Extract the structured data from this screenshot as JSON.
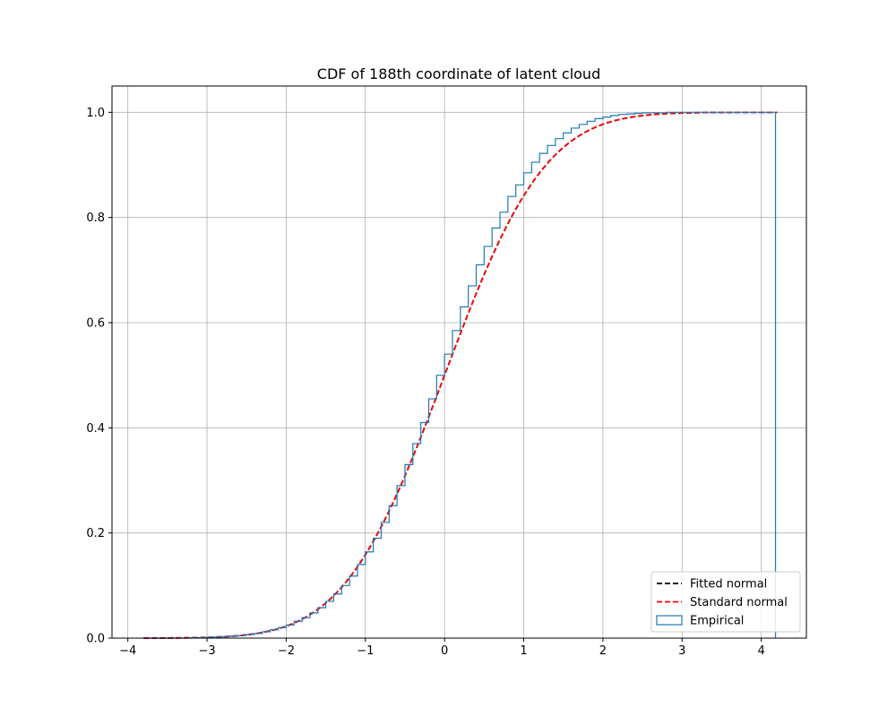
{
  "chart_data": {
    "type": "line",
    "title": "CDF of 188th coordinate of latent cloud",
    "xlabel": "",
    "ylabel": "",
    "xlim": [
      -4.2,
      4.57
    ],
    "ylim": [
      0.0,
      1.05
    ],
    "x_ticks": [
      -4,
      -3,
      -2,
      -1,
      0,
      1,
      2,
      3,
      4
    ],
    "x_tick_labels": [
      "−4",
      "−3",
      "−2",
      "−1",
      "0",
      "1",
      "2",
      "3",
      "4"
    ],
    "y_ticks": [
      0.0,
      0.2,
      0.4,
      0.6,
      0.8,
      1.0
    ],
    "y_tick_labels": [
      "0.0",
      "0.2",
      "0.4",
      "0.6",
      "0.8",
      "1.0"
    ],
    "grid": true,
    "legend_position": "lower-right",
    "series": [
      {
        "name": "Fitted normal",
        "style": "dashed",
        "color": "#000000",
        "mean": 0.0,
        "std": 1.0,
        "x_range": [
          -3.8,
          4.2
        ]
      },
      {
        "name": "Standard normal",
        "style": "dashed",
        "color": "#ff0000",
        "mean": 0.0,
        "std": 1.0,
        "x_range": [
          -3.8,
          4.2
        ]
      },
      {
        "name": "Empirical",
        "style": "step",
        "color": "#1f77b4",
        "x": [
          -3.8,
          -3.7,
          -3.6,
          -3.5,
          -3.4,
          -3.3,
          -3.2,
          -3.1,
          -3.0,
          -2.9,
          -2.8,
          -2.7,
          -2.6,
          -2.5,
          -2.4,
          -2.3,
          -2.2,
          -2.1,
          -2.0,
          -1.9,
          -1.8,
          -1.7,
          -1.6,
          -1.5,
          -1.4,
          -1.3,
          -1.2,
          -1.1,
          -1.0,
          -0.9,
          -0.8,
          -0.7,
          -0.6,
          -0.5,
          -0.4,
          -0.3,
          -0.2,
          -0.1,
          0.0,
          0.1,
          0.2,
          0.3,
          0.4,
          0.5,
          0.6,
          0.7,
          0.8,
          0.9,
          1.0,
          1.1,
          1.2,
          1.3,
          1.4,
          1.5,
          1.6,
          1.7,
          1.8,
          1.9,
          2.0,
          2.1,
          2.2,
          2.3,
          2.4,
          2.5,
          2.6,
          2.7,
          2.8,
          2.9,
          3.0,
          3.1,
          3.2,
          3.3,
          3.4,
          3.5,
          3.6,
          3.7,
          3.8,
          3.9,
          4.0,
          4.1,
          4.18
        ],
        "y": [
          0.0,
          0.0,
          0.0,
          0.0,
          0.0,
          0.0,
          0.001,
          0.001,
          0.002,
          0.002,
          0.003,
          0.004,
          0.005,
          0.007,
          0.009,
          0.012,
          0.016,
          0.02,
          0.025,
          0.032,
          0.039,
          0.048,
          0.058,
          0.07,
          0.084,
          0.1,
          0.118,
          0.14,
          0.164,
          0.19,
          0.22,
          0.252,
          0.29,
          0.33,
          0.37,
          0.41,
          0.455,
          0.5,
          0.54,
          0.585,
          0.63,
          0.67,
          0.71,
          0.745,
          0.78,
          0.81,
          0.84,
          0.862,
          0.885,
          0.905,
          0.922,
          0.937,
          0.95,
          0.961,
          0.97,
          0.977,
          0.983,
          0.988,
          0.991,
          0.994,
          0.996,
          0.997,
          0.998,
          0.999,
          0.999,
          0.999,
          1.0,
          1.0,
          1.0,
          1.0,
          1.0,
          1.0,
          1.0,
          1.0,
          1.0,
          1.0,
          1.0,
          1.0,
          1.0,
          1.0,
          1.0
        ]
      }
    ]
  }
}
